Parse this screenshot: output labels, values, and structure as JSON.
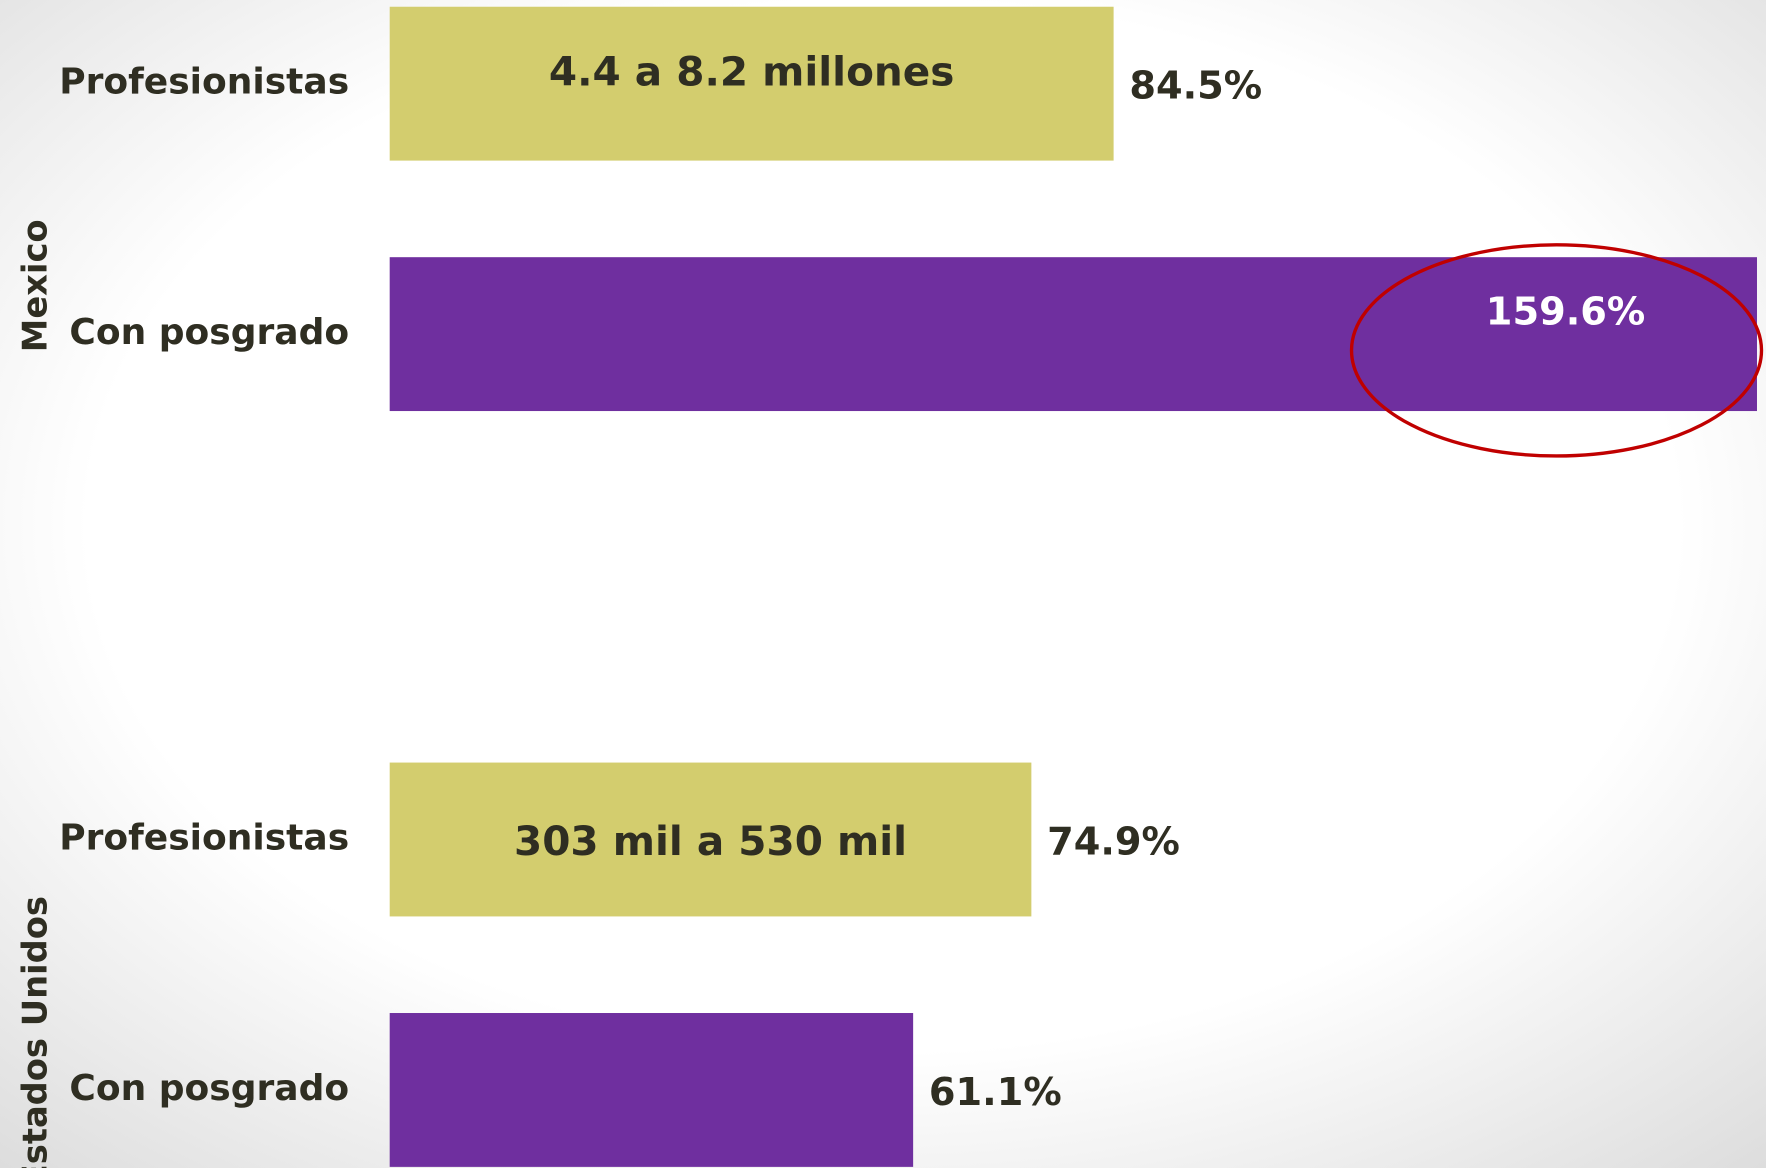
{
  "chart_data": {
    "type": "bar",
    "orientation": "horizontal",
    "groups": [
      "Mexico",
      "Estados Unidos"
    ],
    "series": [
      {
        "name": "Profesionistas",
        "color": "#d3cd6e",
        "values": [
          84.5,
          74.9
        ],
        "value_labels": [
          "84.5%",
          "74.9%"
        ],
        "annotations": [
          "4.4 a 8.2 millones",
          "303 mil a 530 mil"
        ]
      },
      {
        "name": "Con posgrado",
        "color": "#6f2f9f",
        "values": [
          159.6,
          61.1
        ],
        "value_labels": [
          "159.6%",
          "61.1%"
        ]
      }
    ]
  }
}
